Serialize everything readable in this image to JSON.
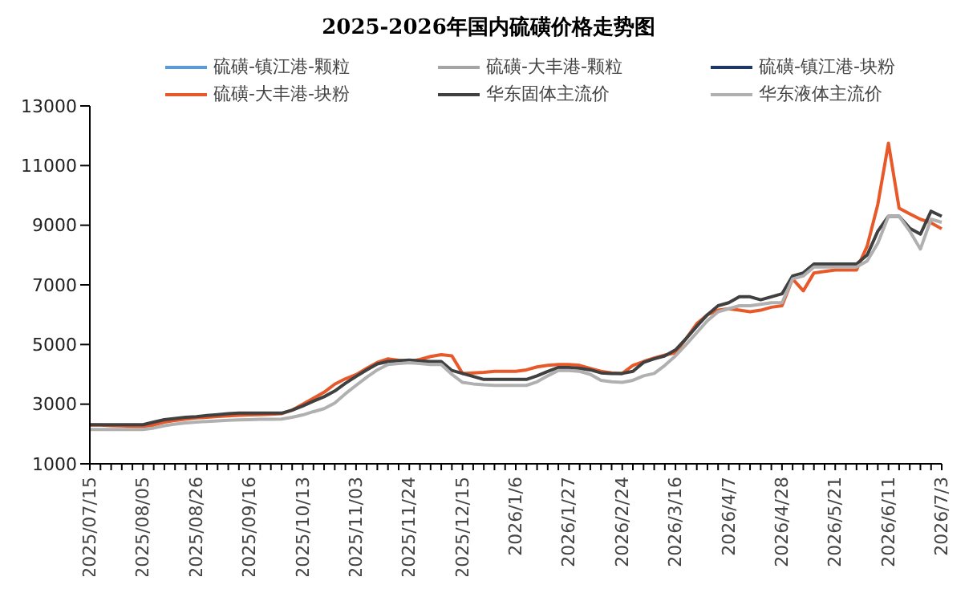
{
  "chart_data": {
    "type": "line",
    "title": "2025-2026年国内硫磺价格走势图",
    "categories": [
      "2025/07/15",
      null,
      null,
      null,
      null,
      "2025/08/05",
      null,
      null,
      null,
      null,
      "2025/08/26",
      null,
      null,
      null,
      null,
      "2025/09/16",
      null,
      null,
      null,
      null,
      "2025/10/13",
      null,
      null,
      null,
      null,
      "2025/11/03",
      null,
      null,
      null,
      null,
      "2025/11/24",
      null,
      null,
      null,
      null,
      "2025/12/15",
      null,
      null,
      null,
      null,
      "2026/1/6",
      null,
      null,
      null,
      null,
      "2026/1/27",
      null,
      null,
      null,
      null,
      "2026/2/24",
      null,
      null,
      null,
      null,
      "2026/3/16",
      null,
      null,
      null,
      null,
      "2026/4/7",
      null,
      null,
      null,
      null,
      "2026/4/28",
      null,
      null,
      null,
      null,
      "2026/5/21",
      null,
      null,
      null,
      null,
      "2026/6/11",
      null,
      null,
      null,
      null,
      "2026/7/3"
    ],
    "series": [
      {
        "name": "硫磺-镇江港-颗粒",
        "color": "#5b9bd5",
        "values": [
          null,
          null,
          null,
          null,
          null,
          null,
          null,
          null,
          null,
          null,
          null,
          null,
          null,
          null,
          null,
          null,
          null,
          null,
          null,
          null,
          null,
          null,
          null,
          null,
          null,
          null,
          null,
          null,
          null,
          null,
          null,
          null,
          null,
          null,
          null,
          null,
          null,
          null,
          null,
          null,
          null,
          null,
          null,
          null,
          null,
          null,
          null,
          null,
          null,
          null,
          null,
          null,
          null,
          null,
          null,
          null,
          null,
          null,
          null,
          null,
          null,
          null,
          null,
          null,
          null,
          null,
          null,
          null,
          null,
          null,
          null,
          null,
          null,
          null,
          null,
          null,
          null,
          null,
          null,
          null,
          null
        ]
      },
      {
        "name": "硫磺-大丰港-颗粒",
        "color": "#a5a5a5",
        "values": [
          null,
          null,
          null,
          null,
          null,
          null,
          null,
          null,
          null,
          null,
          null,
          null,
          null,
          null,
          null,
          null,
          null,
          null,
          null,
          null,
          null,
          null,
          null,
          null,
          null,
          null,
          null,
          null,
          null,
          null,
          null,
          null,
          null,
          null,
          null,
          null,
          null,
          null,
          null,
          null,
          null,
          null,
          null,
          null,
          null,
          null,
          null,
          null,
          null,
          null,
          null,
          null,
          null,
          null,
          null,
          null,
          null,
          null,
          null,
          null,
          null,
          null,
          null,
          null,
          null,
          null,
          null,
          null,
          null,
          null,
          null,
          null,
          null,
          null,
          null,
          null,
          null,
          null,
          null,
          null,
          null
        ]
      },
      {
        "name": "硫磺-镇江港-块粉",
        "color": "#1f3864",
        "values": [
          null,
          null,
          null,
          null,
          null,
          null,
          null,
          null,
          null,
          null,
          null,
          null,
          null,
          null,
          null,
          null,
          null,
          null,
          null,
          null,
          null,
          null,
          null,
          null,
          null,
          null,
          null,
          null,
          null,
          null,
          null,
          null,
          null,
          null,
          null,
          null,
          null,
          null,
          null,
          null,
          null,
          null,
          null,
          null,
          null,
          null,
          null,
          null,
          null,
          null,
          null,
          null,
          null,
          null,
          null,
          null,
          null,
          null,
          null,
          null,
          null,
          null,
          null,
          null,
          null,
          null,
          null,
          null,
          null,
          null,
          null,
          null,
          null,
          null,
          null,
          null,
          null,
          null,
          null,
          null,
          null
        ]
      },
      {
        "name": "硫磺-大丰港-块粉",
        "color": "#e8592a",
        "values": [
          2300,
          2300,
          2280,
          2270,
          2260,
          2250,
          2300,
          2400,
          2450,
          2500,
          2540,
          2560,
          2590,
          2610,
          2630,
          2640,
          2650,
          2660,
          2680,
          2800,
          3000,
          3200,
          3400,
          3670,
          3850,
          3990,
          4200,
          4400,
          4520,
          4470,
          4430,
          4500,
          4600,
          4660,
          4620,
          4030,
          4050,
          4070,
          4100,
          4100,
          4100,
          4150,
          4250,
          4300,
          4330,
          4330,
          4300,
          4200,
          4100,
          4050,
          4030,
          4300,
          4430,
          4550,
          4650,
          4720,
          5200,
          5700,
          6000,
          6150,
          6200,
          6150,
          6100,
          6150,
          6250,
          6300,
          7200,
          6800,
          7400,
          7450,
          7500,
          7500,
          7500,
          8300,
          9700,
          11750,
          9570,
          9380,
          9200,
          9080,
          8880
        ]
      },
      {
        "name": "华东固体主流价",
        "color": "#404040",
        "values": [
          2310,
          2310,
          2310,
          2310,
          2310,
          2310,
          2400,
          2480,
          2520,
          2560,
          2580,
          2620,
          2650,
          2680,
          2700,
          2700,
          2700,
          2700,
          2700,
          2800,
          2940,
          3100,
          3250,
          3440,
          3700,
          3930,
          4150,
          4350,
          4430,
          4460,
          4480,
          4450,
          4430,
          4430,
          4130,
          4030,
          3930,
          3830,
          3830,
          3830,
          3830,
          3830,
          3950,
          4100,
          4230,
          4230,
          4200,
          4150,
          4050,
          4030,
          4030,
          4100,
          4400,
          4520,
          4620,
          4820,
          5200,
          5610,
          6000,
          6300,
          6400,
          6600,
          6600,
          6500,
          6600,
          6700,
          7300,
          7400,
          7700,
          7700,
          7700,
          7700,
          7700,
          8000,
          8800,
          9300,
          9300,
          8900,
          8700,
          9470,
          9300
        ]
      },
      {
        "name": "华东液体主流价",
        "color": "#b0b0b0",
        "values": [
          2150,
          2150,
          2150,
          2150,
          2150,
          2150,
          2200,
          2280,
          2330,
          2370,
          2400,
          2420,
          2440,
          2460,
          2470,
          2480,
          2490,
          2490,
          2500,
          2560,
          2640,
          2750,
          2850,
          3040,
          3350,
          3630,
          3900,
          4150,
          4330,
          4360,
          4390,
          4360,
          4330,
          4330,
          4000,
          3730,
          3680,
          3650,
          3630,
          3630,
          3630,
          3630,
          3750,
          3950,
          4130,
          4130,
          4100,
          4000,
          3800,
          3750,
          3730,
          3800,
          3950,
          4030,
          4300,
          4620,
          5000,
          5400,
          5800,
          6100,
          6200,
          6300,
          6300,
          6350,
          6400,
          6400,
          7200,
          7300,
          7600,
          7600,
          7600,
          7600,
          7600,
          7800,
          8400,
          9300,
          9300,
          8800,
          8200,
          9200,
          9100
        ]
      }
    ],
    "ylim": [
      1000,
      13000
    ],
    "yticks": [
      1000,
      3000,
      5000,
      7000,
      9000,
      11000,
      13000
    ],
    "grid": false,
    "legend": "top",
    "marker": "none",
    "line_style": "solid"
  }
}
